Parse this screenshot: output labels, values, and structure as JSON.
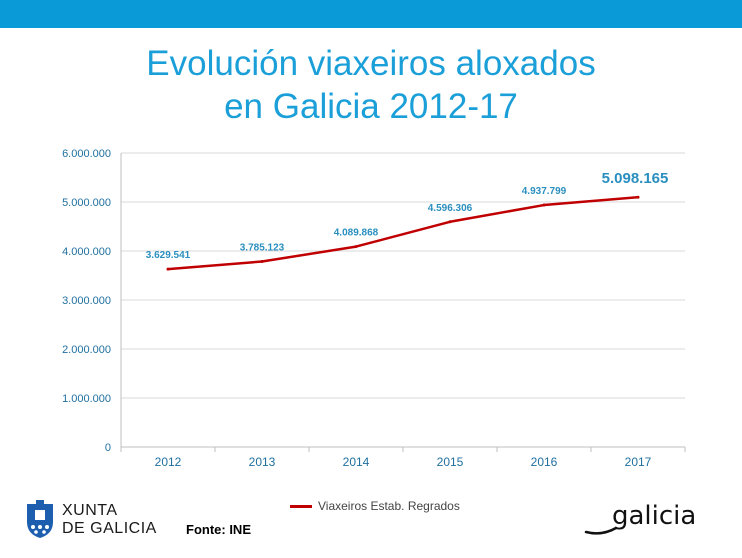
{
  "title_lines": [
    "Evolución viaxeiros aloxados",
    "en Galicia 2012-17"
  ],
  "source": "Fonte: INE",
  "logos": {
    "xunta_line1": "XUNTA",
    "xunta_line2": "DE GALICIA",
    "galicia": "galicia"
  },
  "colors": {
    "top_bar": "#0b9ad8",
    "title": "#1a9fd8",
    "line": "#c00000",
    "data_label": "#2a8fbf",
    "axis_text": "#1f6f9f"
  },
  "chart_data": {
    "type": "line",
    "x": [
      "2012",
      "2013",
      "2014",
      "2015",
      "2016",
      "2017"
    ],
    "series": [
      {
        "name": "Viaxeiros Estab. Regrados",
        "values": [
          3629541,
          3785123,
          4089868,
          4596306,
          4937799,
          5098165
        ],
        "labels": [
          "3.629.541",
          "3.785.123",
          "4.089.868",
          "4.596.306",
          "4.937.799",
          "5.098.165"
        ]
      }
    ],
    "yticks": [
      0,
      1000000,
      2000000,
      3000000,
      4000000,
      5000000,
      6000000
    ],
    "ytick_labels": [
      "0",
      "1.000.000",
      "2.000.000",
      "3.000.000",
      "4.000.000",
      "5.000.000",
      "6.000.000"
    ],
    "ylim": [
      0,
      6000000
    ],
    "grid": true,
    "legend": "bottom"
  }
}
